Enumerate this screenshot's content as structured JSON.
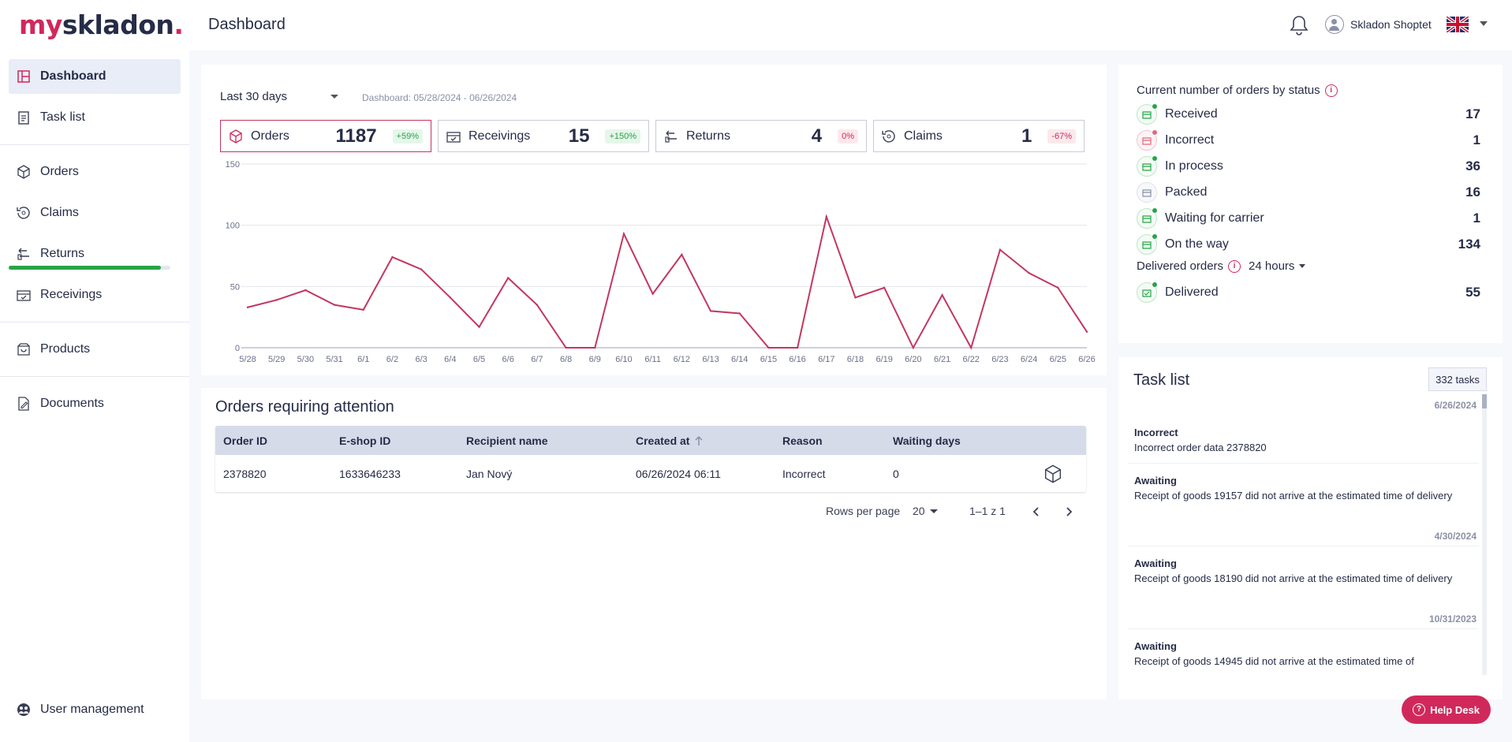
{
  "brand": {
    "logo_my": "my",
    "logo_sk": "skladon",
    "logo_dot": ".",
    "accent": "#d1285b",
    "navy": "#262c47"
  },
  "header": {
    "title": "Dashboard",
    "user_name": "Skladon Shoptet",
    "icons": [
      "bell-icon",
      "user-avatar-icon",
      "uk-flag-icon"
    ]
  },
  "sidebar": {
    "items": [
      {
        "label": "Dashboard",
        "icon": "dashboard-icon"
      },
      {
        "label": "Task list",
        "icon": "clipboard-icon"
      },
      {
        "label": "Orders",
        "icon": "box-icon"
      },
      {
        "label": "Claims",
        "icon": "claim-icon"
      },
      {
        "label": "Returns",
        "icon": "return-icon"
      },
      {
        "label": "Receivings",
        "icon": "receiving-icon"
      },
      {
        "label": "Products",
        "icon": "product-icon"
      },
      {
        "label": "Documents",
        "icon": "document-icon"
      }
    ],
    "returns_progress": 0.94,
    "footer_item": {
      "label": "User management",
      "icon": "user-management-icon"
    }
  },
  "overview": {
    "range_select": "Last 30 days",
    "range_label": "Dashboard: 05/28/2024 - 06/26/2024",
    "kpis": [
      {
        "label": "Orders",
        "value": "1187",
        "change": "+59%",
        "trend": "up"
      },
      {
        "label": "Receivings",
        "value": "15",
        "change": "+150%",
        "trend": "up"
      },
      {
        "label": "Returns",
        "value": "4",
        "change": "0%",
        "trend": "down"
      },
      {
        "label": "Claims",
        "value": "1",
        "change": "-67%",
        "trend": "down"
      }
    ]
  },
  "chart_data": {
    "type": "line",
    "series": [
      {
        "name": "Orders",
        "color": "#c2375f",
        "values": [
          33,
          39,
          47,
          35,
          31,
          74,
          64,
          41,
          17,
          57,
          35,
          0,
          0,
          93,
          44,
          76,
          30,
          28,
          0,
          0,
          107,
          41,
          49,
          0,
          43,
          0,
          80,
          61,
          49,
          13
        ]
      }
    ],
    "categories": [
      "5/28",
      "5/29",
      "5/30",
      "5/31",
      "6/1",
      "6/2",
      "6/3",
      "6/4",
      "6/5",
      "6/6",
      "6/7",
      "6/8",
      "6/9",
      "6/10",
      "6/11",
      "6/12",
      "6/13",
      "6/14",
      "6/15",
      "6/16",
      "6/17",
      "6/18",
      "6/19",
      "6/20",
      "6/21",
      "6/22",
      "6/23",
      "6/24",
      "6/25",
      "6/26"
    ],
    "yticks": [
      0,
      50,
      100,
      150
    ],
    "ylim": [
      0,
      150
    ],
    "grid": true
  },
  "attention": {
    "title": "Orders requiring attention",
    "columns": [
      "Order ID",
      "E-shop ID",
      "Recipient name",
      "Created at",
      "Reason",
      "Waiting days"
    ],
    "rows": [
      {
        "order_id": "2378820",
        "eshop_id": "1633646233",
        "recipient": "Jan Nový",
        "created_at": "06/26/2024 06:11",
        "reason": "Incorrect",
        "waiting_days": "0"
      }
    ],
    "rows_per_page_label": "Rows per page",
    "rows_per_page": "20",
    "range": "1–1 z 1"
  },
  "status": {
    "title": "Current number of orders by status",
    "items": [
      {
        "label": "Received",
        "count": "17",
        "tone": "green"
      },
      {
        "label": "Incorrect",
        "count": "1",
        "tone": "red"
      },
      {
        "label": "In process",
        "count": "36",
        "tone": "green"
      },
      {
        "label": "Packed",
        "count": "16",
        "tone": "grey"
      },
      {
        "label": "Waiting for carrier",
        "count": "1",
        "tone": "green"
      },
      {
        "label": "On the way",
        "count": "134",
        "tone": "green"
      }
    ],
    "delivered_title": "Delivered orders",
    "delivered_range": "24 hours",
    "delivered": {
      "label": "Delivered",
      "count": "55"
    }
  },
  "tasks": {
    "title": "Task list",
    "count": "332 tasks",
    "dates": [
      "6/26/2024",
      "4/30/2024",
      "10/31/2023"
    ],
    "items": [
      {
        "type": "Incorrect",
        "text": "Incorrect order data 2378820"
      },
      {
        "type": "Awaiting",
        "text": "Receipt of goods 19157 did not arrive at the estimated time of delivery"
      },
      {
        "type": "Awaiting",
        "text": "Receipt of goods 18190 did not arrive at the estimated time of delivery"
      },
      {
        "type": "Awaiting",
        "text": "Receipt of goods 14945 did not arrive at the estimated time of"
      }
    ]
  },
  "help": {
    "label": "Help Desk"
  }
}
